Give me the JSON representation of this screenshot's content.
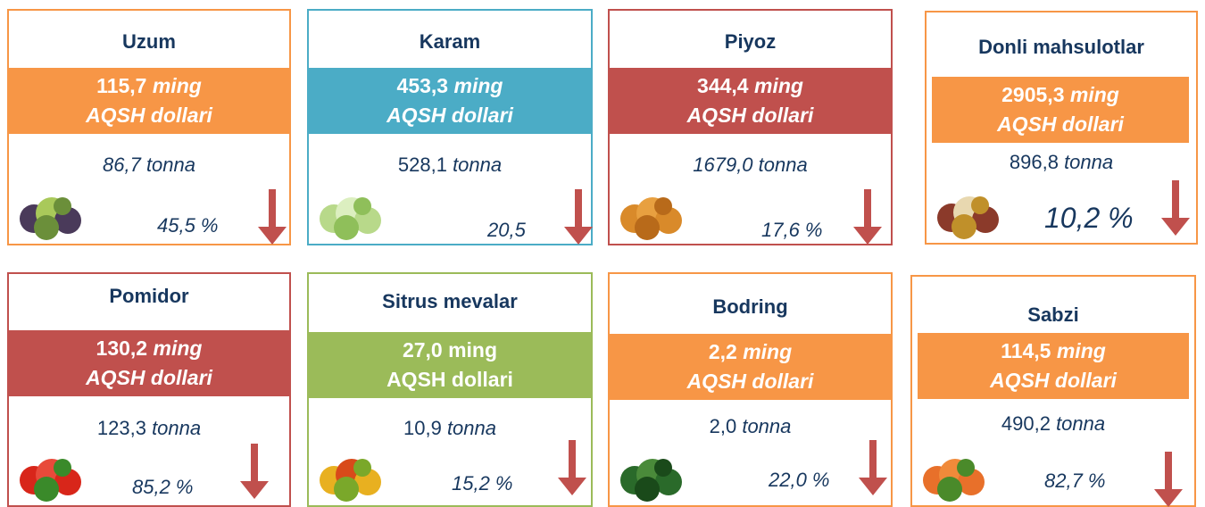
{
  "cards": [
    {
      "title": "Uzum",
      "value": "115,7",
      "unit": "ming",
      "currency": "AQSH dollari",
      "tonnage": "86,7",
      "tonnage_unit": "tonna",
      "change": "45,5 %"
    },
    {
      "title": "Karam",
      "value": "453,3",
      "unit": "ming",
      "currency": "AQSH dollari",
      "tonnage": "528,1",
      "tonnage_unit": "tonna",
      "change": "20,5"
    },
    {
      "title": "Piyoz",
      "value": "344,4",
      "unit": "ming",
      "currency": "AQSH dollari",
      "tonnage": "1679,0",
      "tonnage_unit": "tonna",
      "change": "17,6 %"
    },
    {
      "title": "Donli mahsulotlar",
      "value": "2905,3",
      "unit": "ming",
      "currency": "AQSH dollari",
      "tonnage": "896,8",
      "tonnage_unit": "tonna",
      "change": "10,2 %"
    },
    {
      "title": "Pomidor",
      "value": "130,2",
      "unit": "ming",
      "currency": "AQSH dollari",
      "tonnage": "123,3",
      "tonnage_unit": "tonna",
      "change": "85,2 %"
    },
    {
      "title": "Sitrus mevalar",
      "value": "27,0",
      "unit": "ming",
      "currency": "AQSH dollari",
      "tonnage": "10,9",
      "tonnage_unit": "tonna",
      "change": "15,2 %"
    },
    {
      "title": "Bodring",
      "value": "2,2",
      "unit": "ming",
      "currency": "AQSH dollari",
      "tonnage": "2,0",
      "tonnage_unit": "tonna",
      "change": "22,0 %"
    },
    {
      "title": "Sabzi",
      "value": "114,5",
      "unit": "ming",
      "currency": "AQSH dollari",
      "tonnage": "490,2",
      "tonnage_unit": "tonna",
      "change": "82,7 %"
    }
  ]
}
